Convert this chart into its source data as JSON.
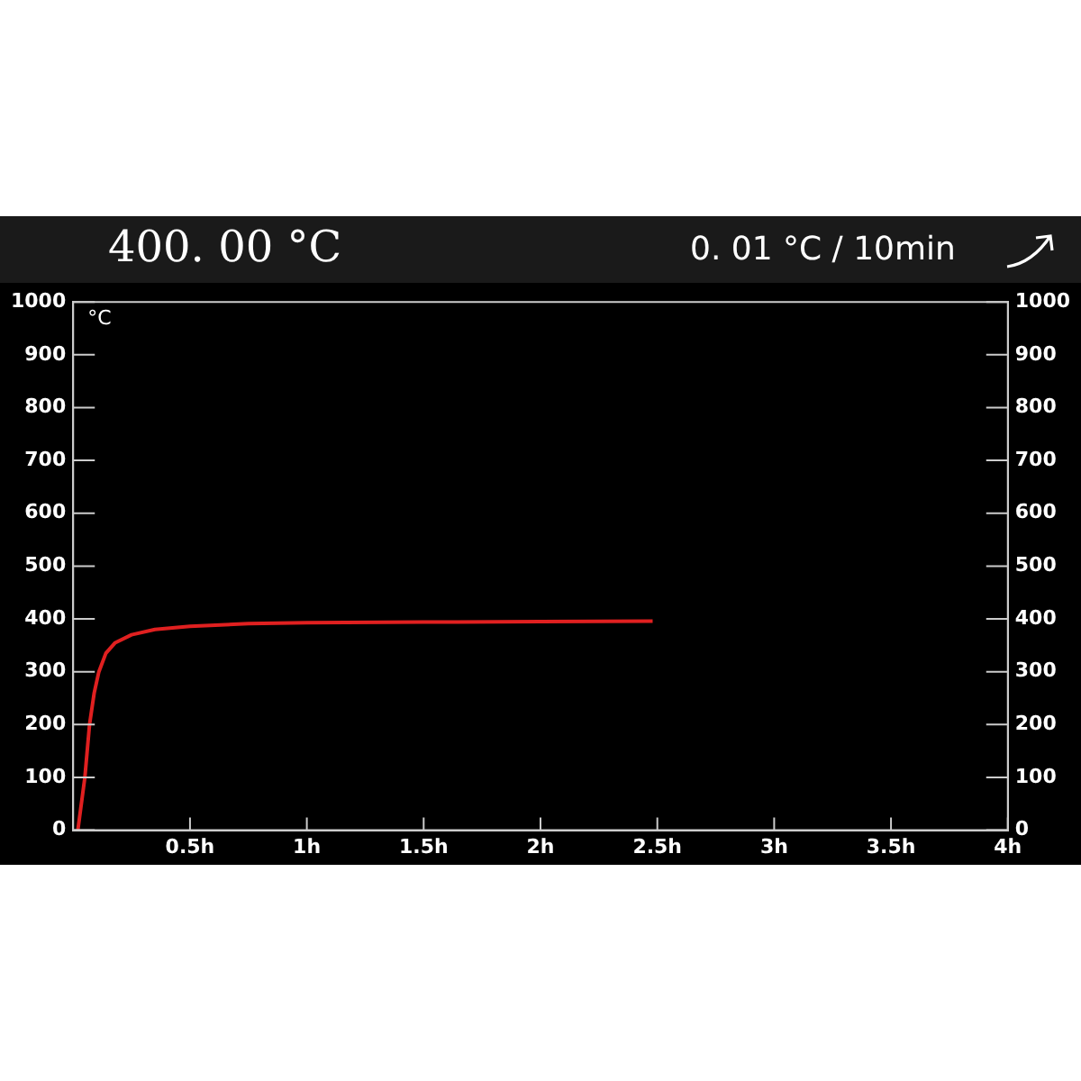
{
  "chart_data": {
    "type": "line",
    "title": "400. 00 °C",
    "subtitle": "0. 01 °C / 10min",
    "ylabel": "°C",
    "x": [
      0.02,
      0.05,
      0.07,
      0.09,
      0.11,
      0.14,
      0.18,
      0.25,
      0.35,
      0.5,
      0.75,
      1,
      1.5,
      2,
      2.48
    ],
    "series": [
      {
        "color": "#e02020",
        "values": [
          0,
          100,
          200,
          260,
          300,
          335,
          355,
          370,
          380,
          386,
          391,
          393,
          394,
          395,
          396
        ]
      }
    ],
    "xlim": [
      0,
      4
    ],
    "xticks": [
      {
        "value": 0.5,
        "label": "0.5h"
      },
      {
        "value": 1,
        "label": "1h"
      },
      {
        "value": 1.5,
        "label": "1.5h"
      },
      {
        "value": 2,
        "label": "2h"
      },
      {
        "value": 2.5,
        "label": "2.5h"
      },
      {
        "value": 3,
        "label": "3h"
      },
      {
        "value": 3.5,
        "label": "3.5h"
      },
      {
        "value": 4,
        "label": "4h"
      }
    ],
    "ylim": [
      0,
      1000
    ],
    "yticks": [
      0,
      100,
      200,
      300,
      400,
      500,
      600,
      700,
      800,
      900,
      1000
    ],
    "y2lim": [
      0,
      1000
    ],
    "y2ticks": [
      0,
      100,
      200,
      300,
      400,
      500,
      600,
      700,
      800,
      900,
      1000
    ],
    "grid": false,
    "legend": false,
    "marker": "none",
    "line_style": "solid"
  }
}
